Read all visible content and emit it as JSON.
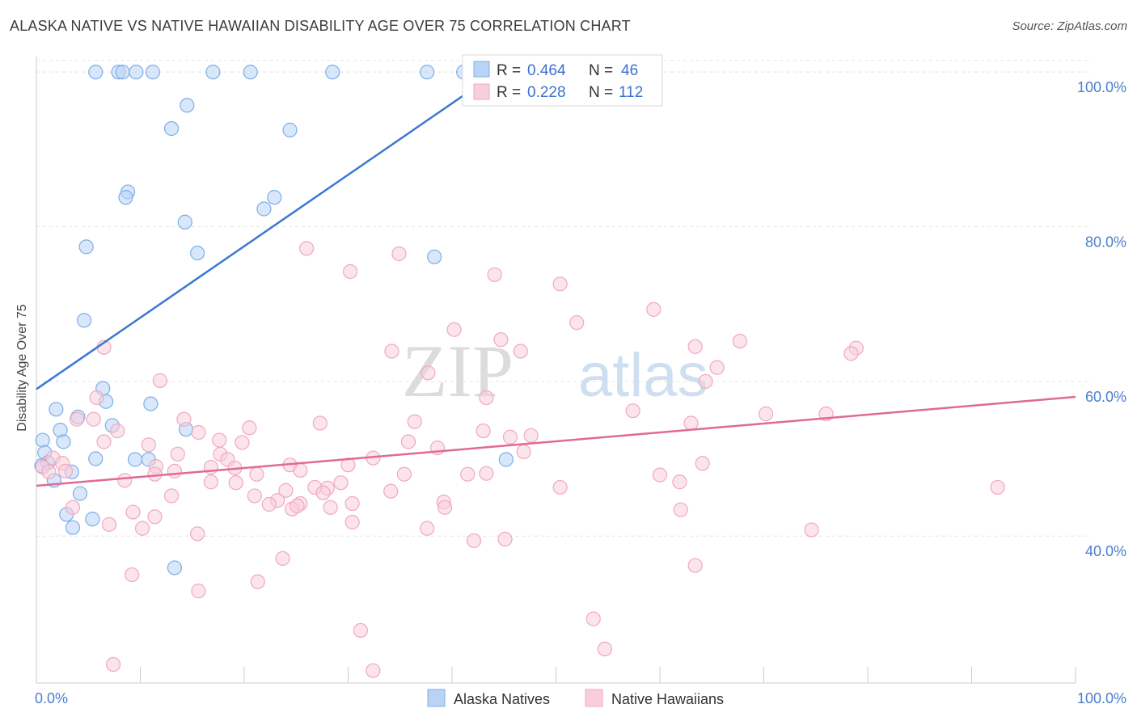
{
  "title": "ALASKA NATIVE VS NATIVE HAWAIIAN DISABILITY AGE OVER 75 CORRELATION CHART",
  "source": "Source: ZipAtlas.com",
  "watermark": {
    "zip": "ZIP",
    "atlas": "atlas"
  },
  "chart_data": {
    "type": "scatter",
    "ylabel": "Disability Age Over 75",
    "xlim": [
      0,
      100
    ],
    "ylim": [
      21,
      102
    ],
    "x_tick_labels": [
      "0.0%",
      "100.0%"
    ],
    "y_ticks": [
      {
        "value": 40,
        "label": "40.0%"
      },
      {
        "value": 60,
        "label": "60.0%"
      },
      {
        "value": 80,
        "label": "80.0%"
      },
      {
        "value": 100,
        "label": "100.0%"
      }
    ],
    "grid": true,
    "legend": {
      "placement": "top-center",
      "rows": [
        {
          "series": "Alaska Natives",
          "r_label": "R =",
          "r_value": "0.464",
          "n_label": "N =",
          "n_value": "46"
        },
        {
          "series": "Native Hawaiians",
          "r_label": "R =",
          "r_value": "0.228",
          "n_label": "N =",
          "n_value": "112"
        }
      ]
    },
    "series": [
      {
        "name": "Alaska Natives",
        "color": "#7faee8",
        "fill": "#b9d3f5",
        "line_color": "#3a78d4",
        "trend": {
          "x1": 0,
          "y1": 59.0,
          "x2": 46,
          "y2": 101.5
        },
        "points": [
          [
            5.7,
            100
          ],
          [
            7.9,
            100
          ],
          [
            8.3,
            100
          ],
          [
            9.6,
            100
          ],
          [
            11.2,
            100
          ],
          [
            17.0,
            100
          ],
          [
            20.6,
            100
          ],
          [
            28.5,
            100
          ],
          [
            37.6,
            100
          ],
          [
            41.1,
            100
          ],
          [
            14.5,
            95.7
          ],
          [
            13.0,
            92.7
          ],
          [
            24.4,
            92.5
          ],
          [
            8.8,
            84.5
          ],
          [
            8.6,
            83.8
          ],
          [
            22.9,
            83.8
          ],
          [
            21.9,
            82.3
          ],
          [
            14.3,
            80.6
          ],
          [
            4.8,
            77.4
          ],
          [
            15.5,
            76.6
          ],
          [
            38.3,
            76.1
          ],
          [
            4.6,
            67.9
          ],
          [
            6.4,
            59.1
          ],
          [
            6.7,
            57.4
          ],
          [
            11.0,
            57.1
          ],
          [
            1.9,
            56.4
          ],
          [
            4.0,
            55.4
          ],
          [
            7.3,
            54.3
          ],
          [
            14.4,
            53.8
          ],
          [
            2.3,
            53.7
          ],
          [
            0.6,
            52.4
          ],
          [
            2.6,
            52.2
          ],
          [
            0.8,
            50.8
          ],
          [
            5.7,
            50.0
          ],
          [
            9.5,
            49.9
          ],
          [
            10.8,
            49.9
          ],
          [
            45.2,
            49.9
          ],
          [
            1.1,
            49.5
          ],
          [
            0.5,
            49.1
          ],
          [
            3.4,
            48.3
          ],
          [
            1.7,
            47.2
          ],
          [
            4.2,
            45.5
          ],
          [
            2.9,
            42.8
          ],
          [
            5.4,
            42.2
          ],
          [
            3.5,
            41.1
          ],
          [
            13.3,
            35.9
          ]
        ]
      },
      {
        "name": "Native Hawaiians",
        "color": "#f0a8bf",
        "fill": "#f9cedb",
        "line_color": "#e06a94",
        "trend": {
          "x1": 0,
          "y1": 46.5,
          "x2": 100,
          "y2": 58.0
        },
        "points": [
          [
            26.0,
            77.2
          ],
          [
            34.9,
            76.5
          ],
          [
            30.2,
            74.2
          ],
          [
            44.1,
            73.8
          ],
          [
            50.4,
            72.6
          ],
          [
            59.4,
            69.3
          ],
          [
            52.0,
            67.6
          ],
          [
            40.2,
            66.7
          ],
          [
            44.7,
            65.4
          ],
          [
            67.7,
            65.2
          ],
          [
            63.4,
            64.5
          ],
          [
            78.9,
            64.3
          ],
          [
            6.5,
            64.4
          ],
          [
            34.2,
            63.9
          ],
          [
            46.6,
            63.9
          ],
          [
            78.4,
            63.6
          ],
          [
            65.5,
            61.8
          ],
          [
            37.7,
            61.1
          ],
          [
            64.4,
            60.0
          ],
          [
            11.9,
            60.1
          ],
          [
            5.8,
            57.9
          ],
          [
            43.3,
            57.9
          ],
          [
            57.4,
            56.2
          ],
          [
            70.2,
            55.8
          ],
          [
            76.0,
            55.8
          ],
          [
            14.2,
            55.1
          ],
          [
            3.9,
            55.1
          ],
          [
            5.5,
            55.1
          ],
          [
            36.4,
            54.8
          ],
          [
            27.3,
            54.6
          ],
          [
            63.0,
            54.6
          ],
          [
            20.5,
            54.0
          ],
          [
            7.8,
            53.6
          ],
          [
            43.0,
            53.6
          ],
          [
            15.6,
            53.4
          ],
          [
            47.6,
            53.0
          ],
          [
            45.6,
            52.8
          ],
          [
            17.6,
            52.4
          ],
          [
            35.8,
            52.2
          ],
          [
            19.8,
            52.1
          ],
          [
            6.5,
            52.2
          ],
          [
            10.8,
            51.8
          ],
          [
            38.6,
            51.4
          ],
          [
            46.9,
            50.9
          ],
          [
            13.6,
            50.6
          ],
          [
            17.7,
            50.6
          ],
          [
            32.4,
            50.1
          ],
          [
            1.6,
            50.1
          ],
          [
            18.4,
            49.9
          ],
          [
            2.5,
            49.4
          ],
          [
            64.1,
            49.4
          ],
          [
            24.4,
            49.2
          ],
          [
            30.0,
            49.2
          ],
          [
            11.5,
            49.0
          ],
          [
            16.8,
            48.9
          ],
          [
            0.6,
            48.9
          ],
          [
            19.1,
            48.8
          ],
          [
            13.3,
            48.4
          ],
          [
            25.4,
            48.5
          ],
          [
            2.8,
            48.4
          ],
          [
            1.2,
            48.3
          ],
          [
            11.4,
            48.0
          ],
          [
            21.2,
            48.0
          ],
          [
            35.4,
            48.0
          ],
          [
            41.5,
            48.0
          ],
          [
            43.3,
            48.1
          ],
          [
            60.0,
            47.9
          ],
          [
            8.5,
            47.2
          ],
          [
            16.8,
            47.0
          ],
          [
            19.2,
            46.9
          ],
          [
            29.3,
            46.9
          ],
          [
            50.4,
            46.3
          ],
          [
            28.0,
            46.2
          ],
          [
            26.8,
            46.3
          ],
          [
            24.0,
            45.9
          ],
          [
            34.1,
            45.8
          ],
          [
            13.0,
            45.2
          ],
          [
            21.0,
            45.2
          ],
          [
            27.6,
            45.6
          ],
          [
            23.2,
            44.6
          ],
          [
            22.4,
            44.1
          ],
          [
            25.4,
            44.2
          ],
          [
            30.4,
            44.2
          ],
          [
            39.2,
            44.4
          ],
          [
            28.3,
            43.7
          ],
          [
            39.3,
            43.7
          ],
          [
            3.5,
            43.7
          ],
          [
            24.6,
            43.5
          ],
          [
            62.0,
            43.4
          ],
          [
            9.3,
            43.1
          ],
          [
            11.4,
            42.5
          ],
          [
            30.4,
            41.8
          ],
          [
            7.0,
            41.5
          ],
          [
            15.5,
            40.3
          ],
          [
            37.6,
            41.0
          ],
          [
            74.6,
            40.8
          ],
          [
            45.1,
            39.6
          ],
          [
            42.1,
            39.4
          ],
          [
            23.7,
            37.1
          ],
          [
            63.4,
            36.2
          ],
          [
            9.2,
            35.0
          ],
          [
            21.3,
            34.1
          ],
          [
            15.6,
            32.9
          ],
          [
            53.6,
            29.3
          ],
          [
            31.2,
            27.8
          ],
          [
            54.7,
            25.4
          ],
          [
            7.4,
            23.4
          ],
          [
            32.4,
            22.6
          ],
          [
            92.5,
            46.3
          ],
          [
            10.2,
            41.0
          ],
          [
            25.1,
            43.9
          ],
          [
            61.9,
            47.0
          ]
        ]
      }
    ]
  }
}
